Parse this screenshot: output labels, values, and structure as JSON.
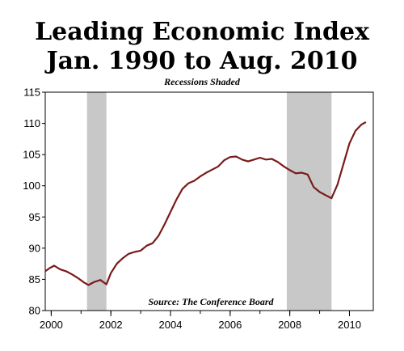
{
  "chart_data": {
    "type": "line",
    "title_line1": "Leading Economic Index",
    "title_line2": "Jan. 1990 to Aug. 2010",
    "subtitle": "Recessions Shaded",
    "source": "Source: The Conference Board",
    "xlabel": "",
    "ylabel": "",
    "xlim": [
      1999.8,
      2010.8
    ],
    "ylim": [
      80,
      115
    ],
    "x_ticks": [
      2000,
      2002,
      2004,
      2006,
      2008,
      2010
    ],
    "y_ticks": [
      80,
      85,
      90,
      95,
      100,
      105,
      110,
      115
    ],
    "grid": false,
    "recessions": [
      [
        2001.2,
        2001.85
      ],
      [
        2007.9,
        2009.4
      ]
    ],
    "line_color": "#7a1a1a",
    "recession_color": "#c8c8c8",
    "series": [
      {
        "x": [
          1999.8,
          1999.95,
          2000.1,
          2000.3,
          2000.5,
          2000.7,
          2000.9,
          2001.1,
          2001.25,
          2001.45,
          2001.65,
          2001.85,
          2002.0,
          2002.2,
          2002.4,
          2002.6,
          2002.8,
          2003.0,
          2003.2,
          2003.4,
          2003.6,
          2003.8,
          2004.0,
          2004.2,
          2004.4,
          2004.6,
          2004.8,
          2005.0,
          2005.2,
          2005.4,
          2005.6,
          2005.8,
          2006.0,
          2006.2,
          2006.4,
          2006.6,
          2006.8,
          2007.0,
          2007.2,
          2007.4,
          2007.6,
          2007.8,
          2008.0,
          2008.2,
          2008.4,
          2008.6,
          2008.8,
          2009.0,
          2009.2,
          2009.4,
          2009.6,
          2009.8,
          2010.0,
          2010.2,
          2010.4,
          2010.55
        ],
        "values": [
          86.3,
          86.8,
          87.2,
          86.6,
          86.3,
          85.8,
          85.2,
          84.5,
          84.1,
          84.6,
          84.9,
          84.2,
          86.0,
          87.5,
          88.4,
          89.1,
          89.4,
          89.6,
          90.4,
          90.8,
          92.0,
          93.8,
          95.8,
          97.8,
          99.5,
          100.4,
          100.8,
          101.5,
          102.1,
          102.6,
          103.1,
          104.1,
          104.6,
          104.7,
          104.2,
          103.9,
          104.2,
          104.5,
          104.2,
          104.3,
          103.8,
          103.1,
          102.5,
          102.0,
          102.1,
          101.8,
          99.8,
          99.0,
          98.5,
          98.0,
          100.2,
          103.5,
          106.8,
          108.8,
          109.8,
          110.2
        ]
      }
    ]
  }
}
